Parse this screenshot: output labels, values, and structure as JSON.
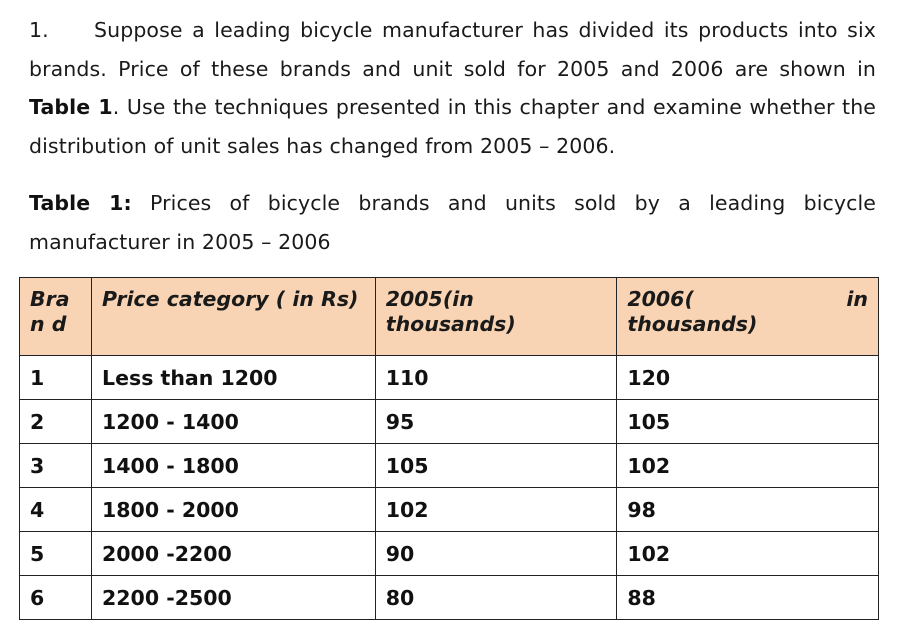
{
  "question": {
    "number": "1.",
    "text_before_ref": "Suppose a leading bicycle manufacturer has divided its products into six brands. Price of these brands and unit sold for 2005 and 2006 are shown in ",
    "table_ref": "Table 1",
    "text_after_ref": ". Use the techniques presented in this chapter and examine whether the distribution of unit sales has changed from 2005 – 2006."
  },
  "caption": {
    "label": "Table 1:",
    "text": " Prices of bicycle brands and units sold by a leading bicycle manufacturer in 2005 – 2006"
  },
  "table": {
    "header_color": "#f9d4b4",
    "headers": {
      "brand": "Bran d",
      "price_category": "Price category ( in Rs)",
      "y2005": "2005(in thousands)",
      "y2006_a": "2006(",
      "y2006_b": "in",
      "y2006_c": "thousands)"
    },
    "rows": [
      {
        "brand": "1",
        "price": "Less than 1200",
        "y2005": "110",
        "y2006": "120"
      },
      {
        "brand": "2",
        "price": "1200 - 1400",
        "y2005": "95",
        "y2006": "105"
      },
      {
        "brand": "3",
        "price": "1400 - 1800",
        "y2005": "105",
        "y2006": "102"
      },
      {
        "brand": "4",
        "price": "1800 - 2000",
        "y2005": "102",
        "y2006": "98"
      },
      {
        "brand": "5",
        "price": "2000 -2200",
        "y2005": "90",
        "y2006": "102"
      },
      {
        "brand": "6",
        "price": "2200 -2500",
        "y2005": "80",
        "y2006": "88"
      }
    ]
  }
}
